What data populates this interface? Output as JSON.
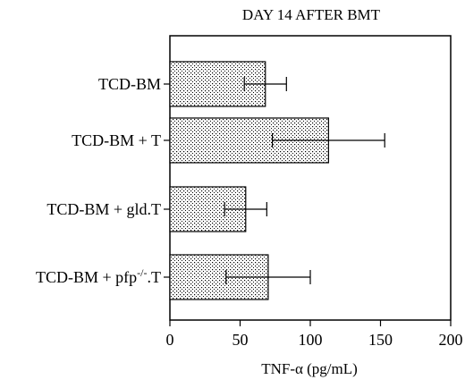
{
  "chart_data": {
    "type": "bar",
    "orientation": "horizontal",
    "title": "DAY 14 AFTER BMT",
    "xlabel": "TNF-α (pg/mL)",
    "ylabel": "",
    "xlim": [
      0,
      200
    ],
    "xticks": [
      0,
      50,
      100,
      150,
      200
    ],
    "categories": [
      {
        "label": "TCD-BM",
        "sup": "",
        "suffix": ""
      },
      {
        "label": "TCD-BM + T",
        "sup": "",
        "suffix": ""
      },
      {
        "label": "TCD-BM + gld.T",
        "sup": "",
        "suffix": ""
      },
      {
        "label": "TCD-BM + pfp",
        "sup": "-/-",
        "suffix": ".T"
      }
    ],
    "values": [
      68,
      113,
      54,
      70
    ],
    "errors": [
      15,
      40,
      15,
      30
    ],
    "bar_fill": "dotted",
    "grid": false
  }
}
